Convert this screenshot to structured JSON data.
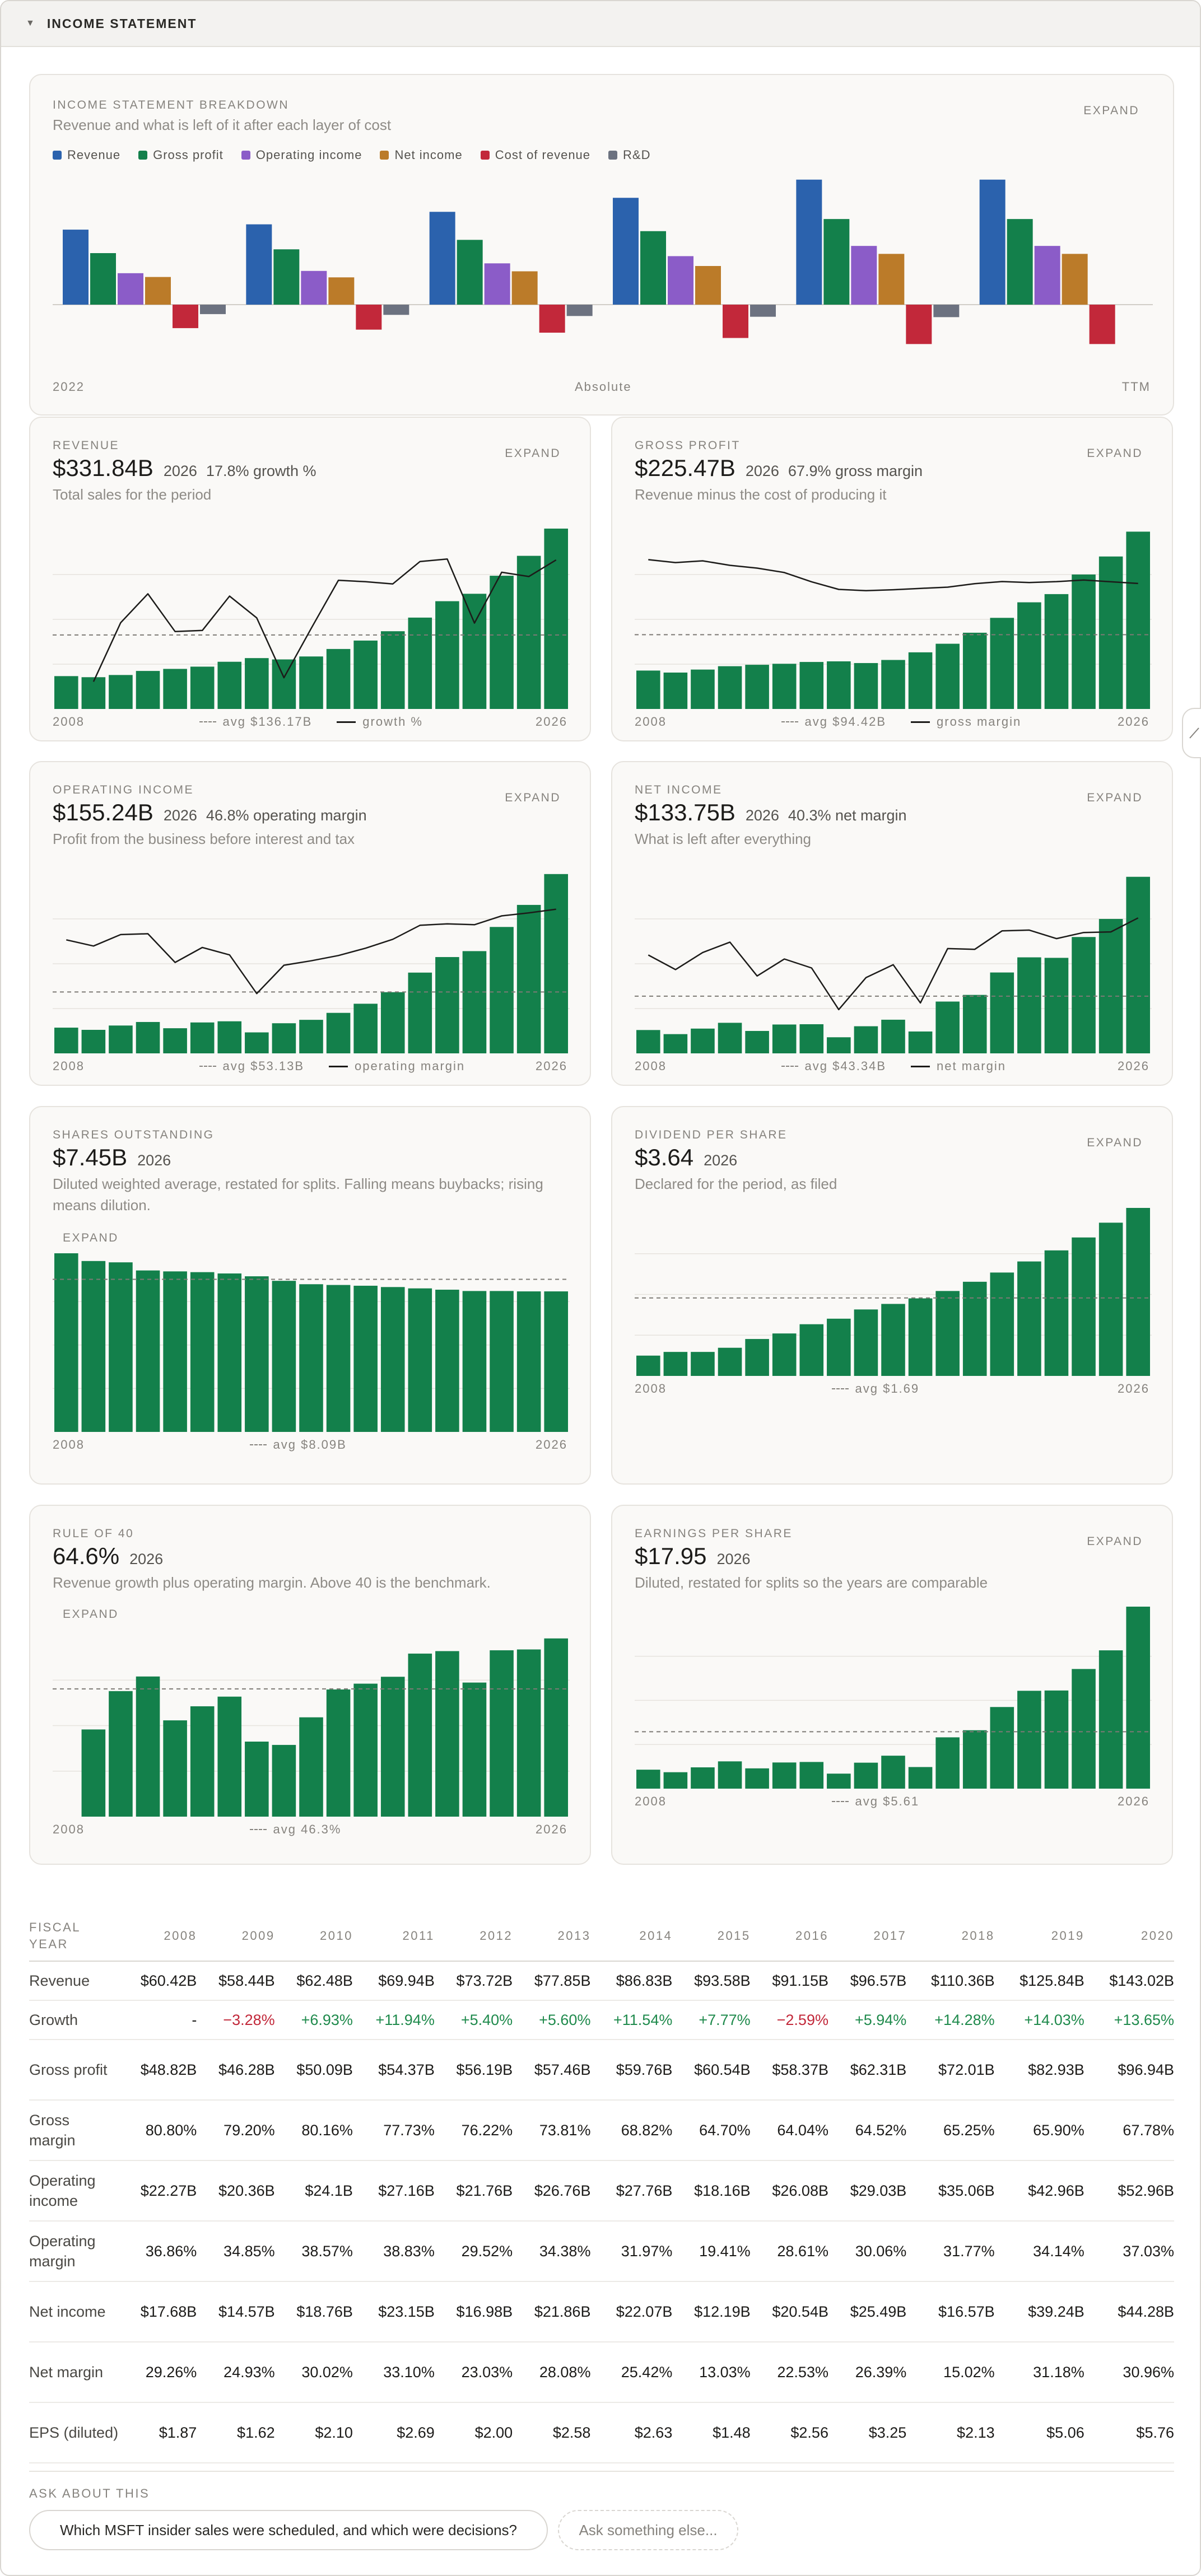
{
  "header": {
    "title": "INCOME STATEMENT"
  },
  "colors": {
    "revenue": "#2b62ad",
    "gross_profit": "#13804b",
    "operating_income": "#8b5cc8",
    "net_income": "#bb7b29",
    "cost_of_revenue": "#c2283a",
    "rnd": "#6c7280",
    "bar_green": "#13804b",
    "positive": "#1f8a4c",
    "negative": "#c2283a"
  },
  "breakdown": {
    "label": "INCOME STATEMENT BREAKDOWN",
    "subtitle": "Revenue and what is left of it after each layer of cost",
    "expand": "EXPAND",
    "axis_left": "2022",
    "axis_mid": "Absolute",
    "axis_right": "TTM",
    "legend": [
      {
        "name": "Revenue",
        "color": "#2b62ad"
      },
      {
        "name": "Gross profit",
        "color": "#13804b"
      },
      {
        "name": "Operating income",
        "color": "#8b5cc8"
      },
      {
        "name": "Net income",
        "color": "#bb7b29"
      },
      {
        "name": "Cost of revenue",
        "color": "#c2283a"
      },
      {
        "name": "R&D",
        "color": "#6c7280"
      }
    ]
  },
  "cards": {
    "revenue": {
      "label": "REVENUE",
      "value": "$331.84B",
      "year": "2026",
      "extra": "17.8% growth %",
      "subtitle": "Total sales for the period",
      "expand": "EXPAND",
      "axis_left": "2008",
      "axis_right": "2026",
      "avg": "avg $136.17B",
      "line_label": "growth %"
    },
    "gross_profit": {
      "label": "GROSS PROFIT",
      "value": "$225.47B",
      "year": "2026",
      "extra": "67.9% gross margin",
      "subtitle": "Revenue minus the cost of producing it",
      "expand": "EXPAND",
      "axis_left": "2008",
      "axis_right": "2026",
      "avg": "avg $94.42B",
      "line_label": "gross margin"
    },
    "operating_income": {
      "label": "OPERATING INCOME",
      "value": "$155.24B",
      "year": "2026",
      "extra": "46.8% operating margin",
      "subtitle": "Profit from the business before interest and tax",
      "expand": "EXPAND",
      "axis_left": "2008",
      "axis_right": "2026",
      "avg": "avg $53.13B",
      "line_label": "operating margin"
    },
    "net_income": {
      "label": "NET INCOME",
      "value": "$133.75B",
      "year": "2026",
      "extra": "40.3% net margin",
      "subtitle": "What is left after everything",
      "expand": "EXPAND",
      "axis_left": "2008",
      "axis_right": "2026",
      "avg": "avg $43.34B",
      "line_label": "net margin"
    },
    "shares": {
      "label": "SHARES OUTSTANDING",
      "value": "$7.45B",
      "year": "2026",
      "subtitle": "Diluted weighted average, restated for splits. Falling means buybacks; rising means dilution.",
      "expand": "EXPAND",
      "axis_left": "2008",
      "axis_right": "2026",
      "avg": "avg $8.09B"
    },
    "dividend": {
      "label": "DIVIDEND PER SHARE",
      "value": "$3.64",
      "year": "2026",
      "subtitle": "Declared for the period, as filed",
      "expand": "EXPAND",
      "axis_left": "2008",
      "axis_right": "2026",
      "avg": "avg $1.69"
    },
    "rule40": {
      "label": "RULE OF 40",
      "value": "64.6%",
      "year": "2026",
      "subtitle": "Revenue growth plus operating margin. Above 40 is the benchmark.",
      "expand": "EXPAND",
      "axis_left": "2008",
      "axis_right": "2026",
      "avg": "avg 46.3%"
    },
    "eps": {
      "label": "EARNINGS PER SHARE",
      "value": "$17.95",
      "year": "2026",
      "subtitle": "Diluted, restated for splits so the years are comparable",
      "expand": "EXPAND",
      "axis_left": "2008",
      "axis_right": "2026",
      "avg": "avg $5.61"
    }
  },
  "chart_data": [
    {
      "id": "breakdown",
      "type": "bar",
      "categories": [
        "2022",
        "2023",
        "2024",
        "2025",
        "2026",
        "TTM"
      ],
      "series": [
        {
          "name": "Revenue",
          "values": [
            198,
            212,
            245,
            282,
            330,
            330
          ]
        },
        {
          "name": "Gross profit",
          "values": [
            136,
            146,
            171,
            194,
            226,
            226
          ]
        },
        {
          "name": "Operating income",
          "values": [
            83,
            89,
            109,
            128,
            155,
            155
          ]
        },
        {
          "name": "Net income",
          "values": [
            73,
            72,
            88,
            102,
            134,
            134
          ]
        },
        {
          "name": "Cost of revenue",
          "values": [
            -62,
            -66,
            -74,
            -88,
            -104,
            -104
          ]
        },
        {
          "name": "R&D",
          "values": [
            -25,
            -27,
            -30,
            -32,
            -33,
            0
          ]
        }
      ],
      "ylim": [
        -120,
        340
      ],
      "grid": false
    },
    {
      "id": "revenue",
      "type": "bar",
      "categories": [
        "2008",
        "2009",
        "2010",
        "2011",
        "2012",
        "2013",
        "2014",
        "2015",
        "2016",
        "2017",
        "2018",
        "2019",
        "2020",
        "2021",
        "2022",
        "2023",
        "2024",
        "2025",
        "2026"
      ],
      "values": [
        60.42,
        58.44,
        62.48,
        69.94,
        73.72,
        77.85,
        86.83,
        93.58,
        91.15,
        96.57,
        110.36,
        125.84,
        143.02,
        168.09,
        198.27,
        211.92,
        245.12,
        281.72,
        331.84
      ],
      "line": {
        "name": "growth %",
        "values": [
          null,
          -3.28,
          6.93,
          11.94,
          5.4,
          5.6,
          11.54,
          7.77,
          -2.59,
          5.94,
          14.28,
          14.03,
          13.65,
          17.53,
          17.96,
          6.88,
          15.67,
          14.93,
          17.8
        ],
        "ylim": [
          -8,
          24
        ]
      },
      "avg": 136.17,
      "ylim": [
        0,
        340
      ]
    },
    {
      "id": "gross_profit",
      "type": "bar",
      "categories": [
        "2008",
        "2009",
        "2010",
        "2011",
        "2012",
        "2013",
        "2014",
        "2015",
        "2016",
        "2017",
        "2018",
        "2019",
        "2020",
        "2021",
        "2022",
        "2023",
        "2024",
        "2025",
        "2026"
      ],
      "values": [
        48.82,
        46.28,
        50.09,
        54.37,
        56.19,
        57.46,
        59.76,
        60.54,
        58.37,
        62.31,
        72.01,
        82.93,
        96.94,
        115.86,
        135.62,
        146.05,
        171.01,
        193.89,
        225.47
      ],
      "line": {
        "name": "gross margin",
        "values": [
          80.8,
          79.2,
          80.16,
          77.73,
          76.22,
          73.81,
          68.82,
          64.7,
          64.04,
          64.52,
          65.25,
          65.9,
          67.78,
          68.93,
          68.4,
          68.92,
          69.76,
          68.82,
          67.9
        ],
        "ylim": [
          0,
          100
        ]
      },
      "avg": 94.42,
      "ylim": [
        0,
        235
      ]
    },
    {
      "id": "operating_income",
      "type": "bar",
      "categories": [
        "2008",
        "2009",
        "2010",
        "2011",
        "2012",
        "2013",
        "2014",
        "2015",
        "2016",
        "2017",
        "2018",
        "2019",
        "2020",
        "2021",
        "2022",
        "2023",
        "2024",
        "2025",
        "2026"
      ],
      "values": [
        22.27,
        20.36,
        24.1,
        27.16,
        21.76,
        26.76,
        27.76,
        18.16,
        26.08,
        29.03,
        35.06,
        42.96,
        52.96,
        69.92,
        83.38,
        88.52,
        109.43,
        128.53,
        155.24
      ],
      "line": {
        "name": "operating margin",
        "values": [
          36.86,
          34.85,
          38.57,
          38.83,
          29.52,
          34.38,
          31.97,
          19.41,
          28.61,
          30.06,
          31.77,
          34.14,
          37.03,
          41.59,
          42.06,
          41.77,
          44.64,
          45.62,
          46.8
        ],
        "ylim": [
          0,
          60
        ]
      },
      "avg": 53.13,
      "ylim": [
        0,
        160
      ]
    },
    {
      "id": "net_income",
      "type": "bar",
      "categories": [
        "2008",
        "2009",
        "2010",
        "2011",
        "2012",
        "2013",
        "2014",
        "2015",
        "2016",
        "2017",
        "2018",
        "2019",
        "2020",
        "2021",
        "2022",
        "2023",
        "2024",
        "2025",
        "2026"
      ],
      "values": [
        17.68,
        14.57,
        18.76,
        23.15,
        16.98,
        21.86,
        22.07,
        12.19,
        20.54,
        25.49,
        16.57,
        39.24,
        44.28,
        61.27,
        72.74,
        72.36,
        88.14,
        101.83,
        133.75
      ],
      "line": {
        "name": "net margin",
        "values": [
          29.26,
          24.93,
          30.02,
          33.1,
          23.03,
          28.08,
          25.42,
          13.03,
          22.53,
          26.39,
          15.02,
          31.18,
          30.96,
          36.45,
          36.69,
          34.15,
          35.96,
          36.15,
          40.3
        ],
        "ylim": [
          0,
          55
        ]
      },
      "avg": 43.34,
      "ylim": [
        0,
        140
      ]
    },
    {
      "id": "shares",
      "type": "bar",
      "categories": [
        "2008",
        "2009",
        "2010",
        "2011",
        "2012",
        "2013",
        "2014",
        "2015",
        "2016",
        "2017",
        "2018",
        "2019",
        "2020",
        "2021",
        "2022",
        "2023",
        "2024",
        "2025",
        "2026"
      ],
      "values": [
        9.47,
        9.06,
        8.99,
        8.56,
        8.51,
        8.47,
        8.4,
        8.25,
        8.01,
        7.83,
        7.79,
        7.75,
        7.68,
        7.61,
        7.54,
        7.47,
        7.47,
        7.45,
        7.45
      ],
      "avg": 8.09,
      "ylim": [
        0,
        9.5
      ]
    },
    {
      "id": "dividend",
      "type": "bar",
      "categories": [
        "2008",
        "2009",
        "2010",
        "2011",
        "2012",
        "2013",
        "2014",
        "2015",
        "2016",
        "2017",
        "2018",
        "2019",
        "2020",
        "2021",
        "2022",
        "2023",
        "2024",
        "2025",
        "2026"
      ],
      "values": [
        0.44,
        0.52,
        0.52,
        0.61,
        0.8,
        0.92,
        1.12,
        1.24,
        1.44,
        1.56,
        1.68,
        1.84,
        2.04,
        2.24,
        2.48,
        2.72,
        3.0,
        3.32,
        3.64
      ],
      "avg": 1.69,
      "ylim": [
        0,
        3.64
      ]
    },
    {
      "id": "rule40",
      "type": "bar",
      "categories": [
        "2008",
        "2009",
        "2010",
        "2011",
        "2012",
        "2013",
        "2014",
        "2015",
        "2016",
        "2017",
        "2018",
        "2019",
        "2020",
        "2021",
        "2022",
        "2023",
        "2024",
        "2025",
        "2026"
      ],
      "values": [
        null,
        31.6,
        45.5,
        50.8,
        34.9,
        40.0,
        43.5,
        27.2,
        26.0,
        36.0,
        46.1,
        48.2,
        50.7,
        59.1,
        60.0,
        48.6,
        60.3,
        60.6,
        64.6
      ],
      "avg": 46.3,
      "ylim": [
        0,
        68
      ]
    },
    {
      "id": "eps",
      "type": "bar",
      "categories": [
        "2008",
        "2009",
        "2010",
        "2011",
        "2012",
        "2013",
        "2014",
        "2015",
        "2016",
        "2017",
        "2018",
        "2019",
        "2020",
        "2021",
        "2022",
        "2023",
        "2024",
        "2025",
        "2026"
      ],
      "values": [
        1.87,
        1.62,
        2.1,
        2.69,
        2.0,
        2.58,
        2.63,
        1.48,
        2.56,
        3.25,
        2.13,
        5.06,
        5.76,
        8.05,
        9.65,
        9.68,
        11.8,
        13.64,
        17.95
      ],
      "avg": 5.61,
      "ylim": [
        0,
        17.95
      ]
    }
  ],
  "table": {
    "corner": "FISCAL YEAR",
    "years": [
      "2008",
      "2009",
      "2010",
      "2011",
      "2012",
      "2013",
      "2014",
      "2015",
      "2016",
      "2017",
      "2018",
      "2019",
      "2020"
    ],
    "rows": [
      {
        "label": "Revenue",
        "cells": [
          "$60.42B",
          "$58.44B",
          "$62.48B",
          "$69.94B",
          "$73.72B",
          "$77.85B",
          "$86.83B",
          "$93.58B",
          "$91.15B",
          "$96.57B",
          "$110.36B",
          "$125.84B",
          "$143.02B"
        ]
      },
      {
        "label": "Growth",
        "cells": [
          "-",
          "−3.28%",
          "+6.93%",
          "+11.94%",
          "+5.40%",
          "+5.60%",
          "+11.54%",
          "+7.77%",
          "−2.59%",
          "+5.94%",
          "+14.28%",
          "+14.03%",
          "+13.65%"
        ]
      },
      {
        "label": "Gross profit",
        "cells": [
          "$48.82B",
          "$46.28B",
          "$50.09B",
          "$54.37B",
          "$56.19B",
          "$57.46B",
          "$59.76B",
          "$60.54B",
          "$58.37B",
          "$62.31B",
          "$72.01B",
          "$82.93B",
          "$96.94B"
        ]
      },
      {
        "label": "Gross margin",
        "cells": [
          "80.80%",
          "79.20%",
          "80.16%",
          "77.73%",
          "76.22%",
          "73.81%",
          "68.82%",
          "64.70%",
          "64.04%",
          "64.52%",
          "65.25%",
          "65.90%",
          "67.78%"
        ]
      },
      {
        "label": "Operating income",
        "cells": [
          "$22.27B",
          "$20.36B",
          "$24.1B",
          "$27.16B",
          "$21.76B",
          "$26.76B",
          "$27.76B",
          "$18.16B",
          "$26.08B",
          "$29.03B",
          "$35.06B",
          "$42.96B",
          "$52.96B"
        ]
      },
      {
        "label": "Operating margin",
        "cells": [
          "36.86%",
          "34.85%",
          "38.57%",
          "38.83%",
          "29.52%",
          "34.38%",
          "31.97%",
          "19.41%",
          "28.61%",
          "30.06%",
          "31.77%",
          "34.14%",
          "37.03%"
        ]
      },
      {
        "label": "Net income",
        "cells": [
          "$17.68B",
          "$14.57B",
          "$18.76B",
          "$23.15B",
          "$16.98B",
          "$21.86B",
          "$22.07B",
          "$12.19B",
          "$20.54B",
          "$25.49B",
          "$16.57B",
          "$39.24B",
          "$44.28B"
        ]
      },
      {
        "label": "Net margin",
        "cells": [
          "29.26%",
          "24.93%",
          "30.02%",
          "33.10%",
          "23.03%",
          "28.08%",
          "25.42%",
          "13.03%",
          "22.53%",
          "26.39%",
          "15.02%",
          "31.18%",
          "30.96%"
        ]
      },
      {
        "label": "EPS (diluted)",
        "cells": [
          "$1.87",
          "$1.62",
          "$2.10",
          "$2.69",
          "$2.00",
          "$2.58",
          "$2.63",
          "$1.48",
          "$2.56",
          "$3.25",
          "$2.13",
          "$5.06",
          "$5.76"
        ]
      }
    ]
  },
  "ask": {
    "label": "ASK ABOUT THIS",
    "suggestion": "Which MSFT insider sales were scheduled, and which were decisions?",
    "placeholder": "Ask something else..."
  }
}
